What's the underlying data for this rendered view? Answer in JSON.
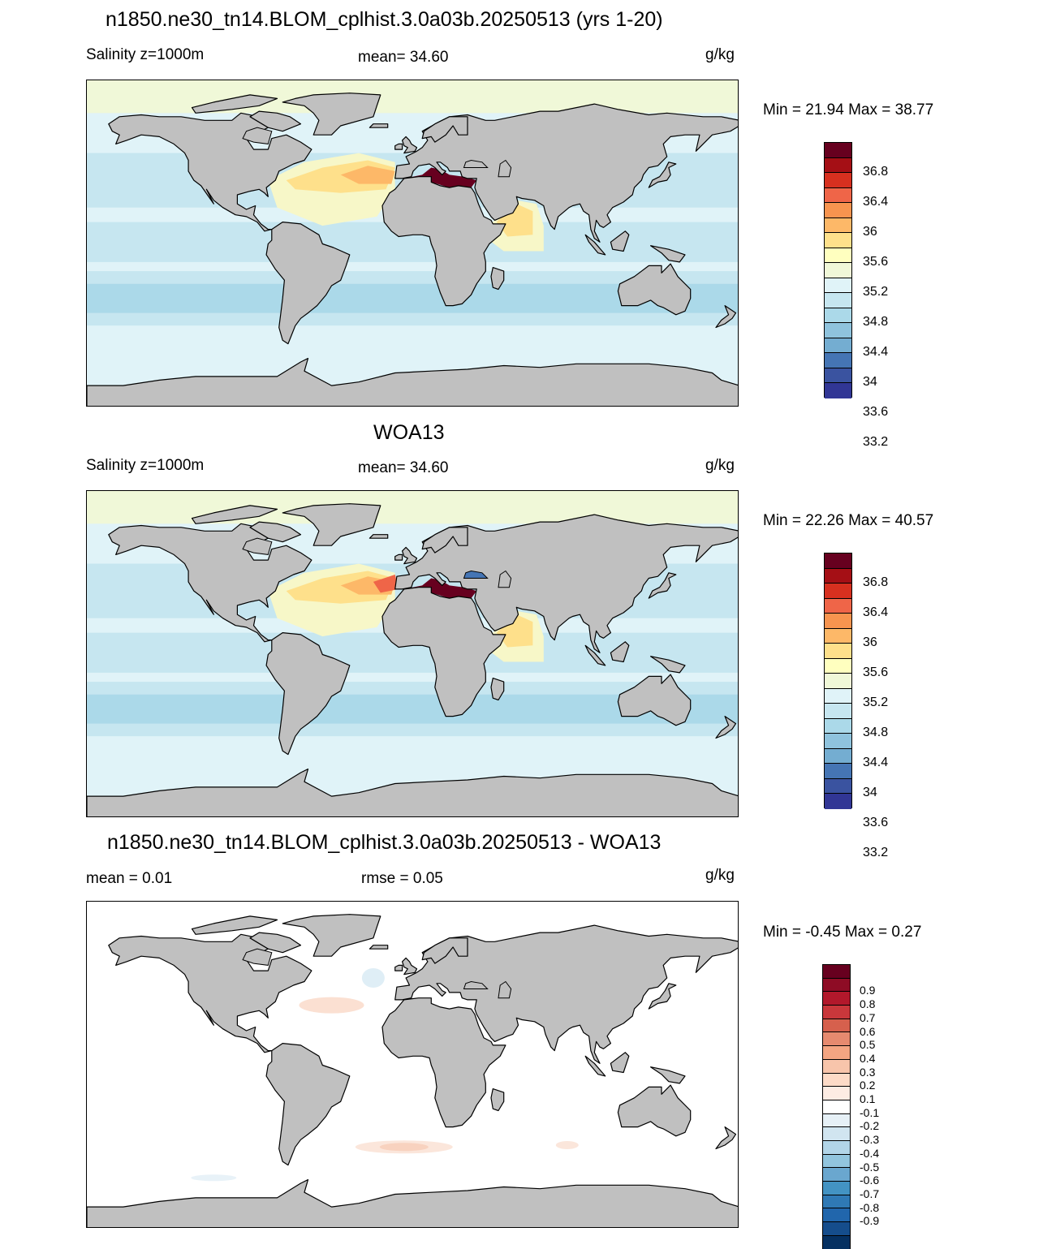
{
  "panels": [
    {
      "title": "n1850.ne30_tn14.BLOM_cplhist.3.0a03b.20250513 (yrs 1-20)",
      "left_text": "Salinity z=1000m",
      "center_text": "mean=  34.60",
      "units": "g/kg",
      "minmax": "Min =  21.94 Max =  38.77",
      "type": "model"
    },
    {
      "title": "WOA13",
      "left_text": "Salinity z=1000m",
      "center_text": "mean=  34.60",
      "units": "g/kg",
      "minmax": "Min =  22.26 Max =  40.57",
      "type": "obs"
    },
    {
      "title": "n1850.ne30_tn14.BLOM_cplhist.3.0a03b.20250513 - WOA13",
      "left_text": "mean =   0.01",
      "center_text": "rmse =   0.05",
      "units": "g/kg",
      "minmax": "Min =  -0.45 Max =   0.27",
      "type": "diff"
    }
  ],
  "colorbar_abs": {
    "labels": [
      "36.8",
      "36.4",
      "36",
      "35.6",
      "35.2",
      "34.8",
      "34.4",
      "34",
      "33.6",
      "33.2"
    ],
    "colors": [
      "#67001f",
      "#a50f15",
      "#d7301f",
      "#ef6548",
      "#f7944f",
      "#fdb868",
      "#fee08b",
      "#ffffbf",
      "#f0f8d8",
      "#e0f3f8",
      "#c6e6f0",
      "#abd9e9",
      "#8fc3dd",
      "#74add1",
      "#4575b4",
      "#3a53a0",
      "#313695"
    ]
  },
  "colorbar_diff": {
    "labels": [
      "0.9",
      "0.8",
      "0.7",
      "0.6",
      "0.5",
      "0.4",
      "0.3",
      "0.2",
      "0.1",
      "-0.1",
      "-0.2",
      "-0.3",
      "-0.4",
      "-0.5",
      "-0.6",
      "-0.7",
      "-0.8",
      "-0.9"
    ],
    "colors": [
      "#67001f",
      "#8e0c25",
      "#b2182b",
      "#c9373b",
      "#d6604d",
      "#e68a6f",
      "#f4a582",
      "#f8c5ab",
      "#fddbc7",
      "#fdece3",
      "#ffffff",
      "#e6f0f6",
      "#d1e5f0",
      "#b2d5e8",
      "#92c5de",
      "#6aa7cf",
      "#4393c3",
      "#2f79b5",
      "#2166ac",
      "#154d8c",
      "#053061"
    ]
  },
  "colors": {
    "land": "#c0c0c0",
    "ocean_base": "#e0f3f8",
    "coast": "#000000"
  }
}
